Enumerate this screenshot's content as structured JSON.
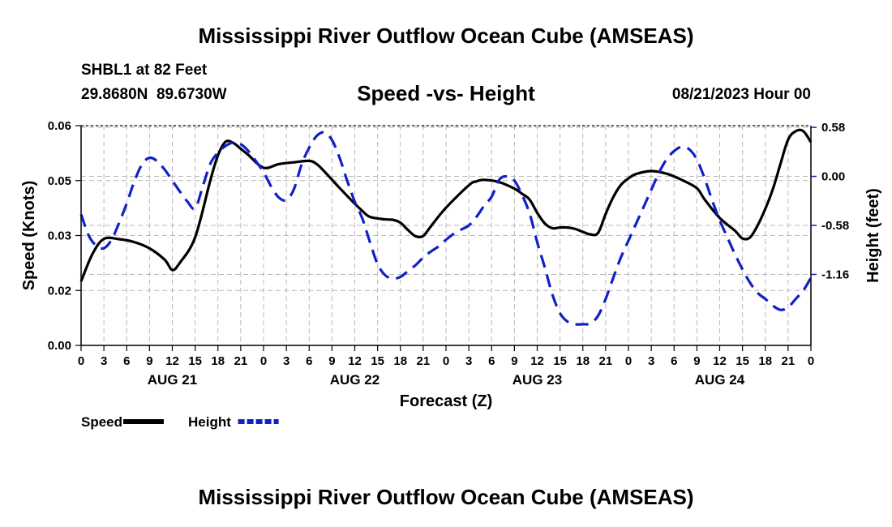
{
  "page_title": "Mississippi River Outflow Ocean Cube (AMSEAS)",
  "next_page_title": "Mississippi River Outflow Ocean Cube (AMSEAS)",
  "station": {
    "line1": "SHBL1 at 82 Feet",
    "line2": "29.8680N  89.6730W",
    "forecast_time": "08/21/2023 Hour 00"
  },
  "chart_data": {
    "type": "line",
    "title": "Speed -vs- Height",
    "xlabel": "Forecast (Z)",
    "ylabel": "Speed (Knots)",
    "y2label": "Height (feet)",
    "ylim": [
      0.0,
      0.06
    ],
    "y_ticks": [
      "0.00",
      "0.02",
      "0.03",
      "0.05",
      "0.06"
    ],
    "y2lim": [
      -2.0,
      0.6
    ],
    "y2_ticks": [
      "0.58",
      "0.00",
      "-0.58",
      "-1.16"
    ],
    "y2_tick_values": [
      0.58,
      0.0,
      -0.58,
      -1.16
    ],
    "xlim": [
      0,
      96
    ],
    "x_tick_labels": [
      "0",
      "3",
      "6",
      "9",
      "12",
      "15",
      "18",
      "21",
      "0",
      "3",
      "6",
      "9",
      "12",
      "15",
      "18",
      "21",
      "0",
      "3",
      "6",
      "9",
      "12",
      "15",
      "18",
      "21",
      "0",
      "3",
      "6",
      "9",
      "12",
      "15",
      "18",
      "21",
      "0"
    ],
    "day_labels": [
      {
        "label": "AUG 21",
        "hour": 12
      },
      {
        "label": "AUG 22",
        "hour": 36
      },
      {
        "label": "AUG 23",
        "hour": 60
      },
      {
        "label": "AUG 24",
        "hour": 84
      }
    ],
    "grid": true,
    "series": [
      {
        "name": "Speed",
        "color": "#000000",
        "axis": "left",
        "dash": "solid",
        "x": [
          0,
          1.5,
          3,
          5,
          7,
          9,
          11,
          12,
          13,
          15,
          17,
          18,
          19,
          20,
          21,
          22,
          24,
          26,
          28,
          30,
          31,
          32,
          34,
          36,
          37,
          38,
          40,
          41,
          42,
          43,
          44,
          45,
          46,
          48,
          51,
          52,
          53,
          55,
          57,
          58,
          59,
          60,
          61,
          62,
          63,
          64,
          65,
          66,
          67,
          68,
          69,
          70,
          71,
          72,
          73,
          75,
          77,
          79,
          81,
          82,
          84,
          86,
          87,
          88,
          89,
          90,
          91,
          92,
          93,
          94,
          95,
          96
        ],
        "values": [
          0.0175,
          0.025,
          0.0291,
          0.029,
          0.0282,
          0.0265,
          0.0234,
          0.0206,
          0.0226,
          0.0295,
          0.0451,
          0.0519,
          0.0556,
          0.0553,
          0.0537,
          0.052,
          0.0485,
          0.0495,
          0.05,
          0.0504,
          0.0495,
          0.0475,
          0.043,
          0.0387,
          0.0367,
          0.0351,
          0.0344,
          0.0343,
          0.0335,
          0.0315,
          0.0298,
          0.0299,
          0.0325,
          0.0376,
          0.0437,
          0.0448,
          0.0452,
          0.0446,
          0.0428,
          0.0414,
          0.0398,
          0.0362,
          0.0333,
          0.032,
          0.0322,
          0.0322,
          0.0318,
          0.031,
          0.0303,
          0.0307,
          0.0359,
          0.0405,
          0.0438,
          0.0456,
          0.0468,
          0.0476,
          0.0469,
          0.0452,
          0.0429,
          0.0399,
          0.0348,
          0.0313,
          0.0292,
          0.0295,
          0.0328,
          0.0373,
          0.0427,
          0.0496,
          0.0562,
          0.0585,
          0.0585,
          0.0555
        ]
      },
      {
        "name": "Height",
        "color": "#1020c8",
        "axis": "right",
        "dash": "dashed",
        "x": [
          0,
          1,
          2,
          3,
          4,
          5,
          6,
          7,
          8,
          9,
          10,
          11,
          12,
          13,
          14,
          15,
          16,
          17,
          18,
          19,
          20,
          21,
          22,
          23,
          24,
          25,
          26,
          27,
          28,
          29,
          30,
          31,
          32,
          33,
          34,
          35,
          36,
          37,
          38,
          39,
          40,
          41,
          42,
          43,
          44,
          45,
          46,
          47,
          48,
          49,
          50,
          51,
          52,
          53,
          54,
          55,
          56,
          57,
          58,
          59,
          60,
          61,
          62,
          63,
          64,
          65,
          66,
          67,
          68,
          69,
          70,
          71,
          72,
          73,
          74,
          75,
          76,
          77,
          78,
          79,
          80,
          81,
          82,
          83,
          84,
          85,
          86,
          87,
          88,
          89,
          90,
          91,
          92,
          93,
          94,
          95,
          96
        ],
        "values": [
          -0.45,
          -0.7,
          -0.82,
          -0.85,
          -0.75,
          -0.55,
          -0.32,
          -0.06,
          0.14,
          0.22,
          0.18,
          0.08,
          -0.05,
          -0.18,
          -0.3,
          -0.38,
          -0.12,
          0.15,
          0.28,
          0.36,
          0.4,
          0.38,
          0.3,
          0.18,
          0.05,
          -0.12,
          -0.25,
          -0.28,
          -0.15,
          0.14,
          0.34,
          0.48,
          0.52,
          0.43,
          0.22,
          -0.05,
          -0.3,
          -0.5,
          -0.78,
          -1.04,
          -1.17,
          -1.21,
          -1.19,
          -1.12,
          -1.05,
          -0.96,
          -0.89,
          -0.83,
          -0.75,
          -0.68,
          -0.63,
          -0.58,
          -0.48,
          -0.35,
          -0.24,
          -0.04,
          0.0,
          -0.05,
          -0.22,
          -0.44,
          -0.78,
          -1.08,
          -1.4,
          -1.62,
          -1.72,
          -1.75,
          -1.75,
          -1.74,
          -1.65,
          -1.45,
          -1.2,
          -0.96,
          -0.76,
          -0.56,
          -0.36,
          -0.16,
          0.04,
          0.2,
          0.3,
          0.35,
          0.32,
          0.2,
          -0.02,
          -0.28,
          -0.52,
          -0.72,
          -0.92,
          -1.1,
          -1.26,
          -1.38,
          -1.45,
          -1.53,
          -1.58,
          -1.55,
          -1.45,
          -1.35,
          -1.2
        ]
      }
    ],
    "legend": {
      "placement": "bottom-left",
      "items": [
        {
          "label": "Speed",
          "color": "#000000",
          "dash": "solid"
        },
        {
          "label": "Height",
          "color": "#1020c8",
          "dash": "dashed"
        }
      ]
    }
  }
}
